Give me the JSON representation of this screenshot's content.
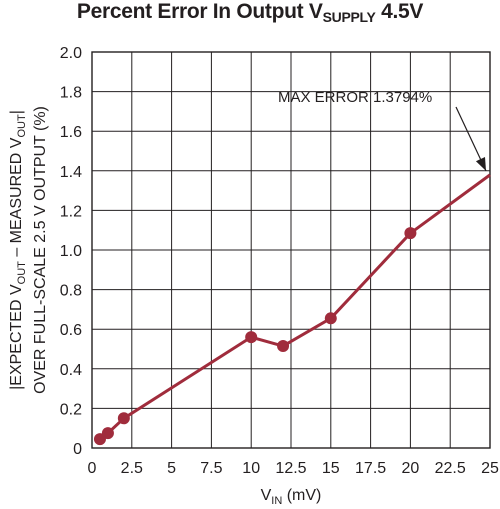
{
  "title": {
    "prefix": "Percent Error In Output V",
    "subscript": "SUPPLY",
    "suffix": " 4.5V"
  },
  "ylabel_lines": [
    "|EXPECTED V OUT – MEASURED V OUT|",
    "OVER FULL-SCALE 2.5 V OUTPUT (%)"
  ],
  "ylabel_parts": {
    "line1": [
      "|EXPECTED V",
      "OUT",
      " – MEASURED V",
      "OUT",
      "|"
    ],
    "line2": "OVER FULL-SCALE 2.5 V OUTPUT (%)"
  },
  "xlabel_parts": [
    "V",
    "IN",
    " (mV)"
  ],
  "annotation": "MAX ERROR 1.3794%",
  "colors": {
    "series": "#a02c3c",
    "grid": "#231f20",
    "text": "#231f20"
  },
  "chart_data": {
    "type": "line",
    "title": "Percent Error In Output VSUPPLY 4.5V",
    "xlabel": "VIN (mV)",
    "ylabel": "|EXPECTED VOUT – MEASURED VOUT| OVER FULL-SCALE 2.5 V OUTPUT (%)",
    "xlim": [
      0,
      25
    ],
    "ylim": [
      0,
      2.0
    ],
    "xticks": [
      "0",
      "2.5",
      "5",
      "7.5",
      "10",
      "12.5",
      "15",
      "17.5",
      "20",
      "22.5",
      "25"
    ],
    "yticks": [
      "0",
      "0.2",
      "0.4",
      "0.6",
      "0.8",
      "1.0",
      "1.2",
      "1.4",
      "1.6",
      "1.8",
      "2.0"
    ],
    "grid": true,
    "series": [
      {
        "x": [
          0.5,
          1.0,
          2.0,
          10.0,
          12.0,
          15.0,
          20.0,
          25.0
        ],
        "y": [
          0.045,
          0.075,
          0.15,
          0.56,
          0.515,
          0.655,
          1.085,
          1.3794
        ],
        "markers": [
          true,
          true,
          true,
          true,
          true,
          true,
          true,
          false
        ]
      }
    ],
    "annotations": [
      {
        "text": "MAX ERROR 1.3794%",
        "x": 25.0,
        "y": 1.3794
      }
    ]
  }
}
